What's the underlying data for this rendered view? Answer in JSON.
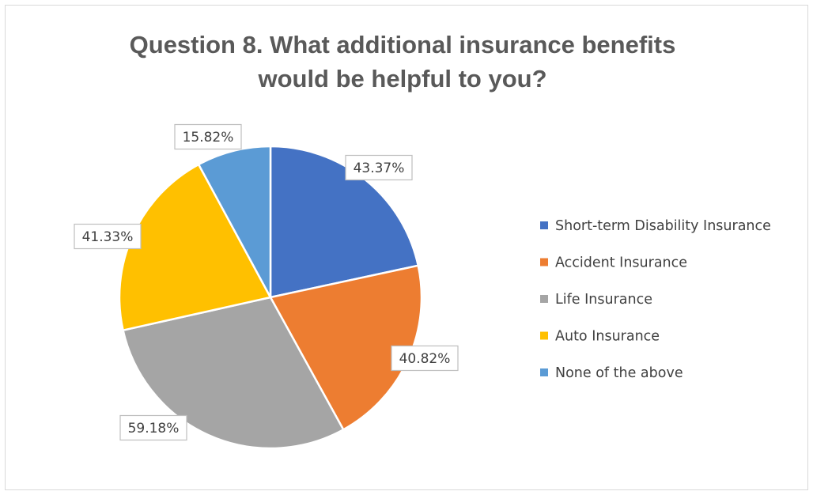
{
  "chart_data": {
    "type": "pie",
    "title_lines": [
      "Question 8. What additional insurance benefits",
      "would be helpful to you?"
    ],
    "categories": [
      "Short-term Disability Insurance",
      "Accident Insurance",
      "Life Insurance",
      "Auto Insurance",
      "None of the above"
    ],
    "values": [
      43.37,
      40.82,
      59.18,
      41.33,
      15.82
    ],
    "labels": [
      "43.37%",
      "40.82%",
      "59.18%",
      "41.33%",
      "15.82%"
    ],
    "colors": [
      "#4472c4",
      "#ed7d31",
      "#a5a5a5",
      "#ffc000",
      "#5b9bd5"
    ],
    "legend_position": "right",
    "start_angle": "12 o'clock",
    "direction": "clockwise"
  }
}
